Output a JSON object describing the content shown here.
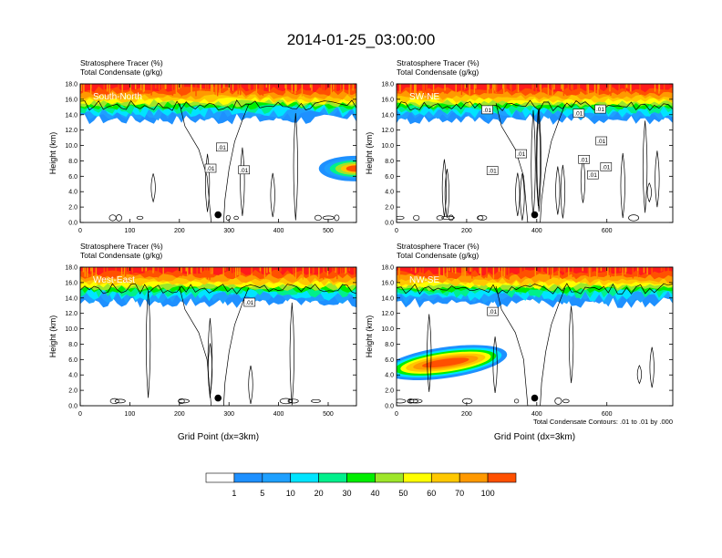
{
  "figure": {
    "title": "2014-01-25_03:00:00",
    "footnote": "Total Condensate Contours: .01 to .01 by .000",
    "xlabel": "Grid Point (dx=3km)",
    "ylabel": "Height (km)",
    "subtitle_line1": "Stratosphere Tracer   (%)",
    "subtitle_line2": "Total Condensate   (g/kg)"
  },
  "colorbar": {
    "labels": [
      "1",
      "5",
      "10",
      "20",
      "30",
      "40",
      "50",
      "60",
      "70",
      "100"
    ],
    "colors": [
      "#ffffff",
      "#1e90ff",
      "#1ea0ff",
      "#00e4ff",
      "#00f08c",
      "#00ee00",
      "#9ee62a",
      "#ffff00",
      "#ffc800",
      "#ff9900",
      "#ff5000",
      "#ff1a1a"
    ]
  },
  "chart_data": [
    {
      "type": "heatmap",
      "panel": "South-North",
      "label": "South-North",
      "xlim": [
        0,
        557
      ],
      "ylim": [
        0,
        18
      ],
      "xticks": [
        "0",
        "100",
        "200",
        "300",
        "400",
        "500"
      ],
      "yticks": [
        "0.0",
        "2.0",
        "4.0",
        "6.0",
        "8.0",
        "10.0",
        "12.0",
        "14.0",
        "16.0",
        "18.0"
      ],
      "contour_labels": [
        ".01",
        ".01",
        ".01"
      ],
      "point": {
        "x": 278,
        "y": 1.0
      },
      "tracer_top_km": 18,
      "tracer_base_km": 14
    },
    {
      "type": "heatmap",
      "panel": "SW-NE",
      "label": "SW-NE",
      "xlim": [
        0,
        788
      ],
      "ylim": [
        0,
        18
      ],
      "xticks": [
        "0",
        "200",
        "400",
        "600"
      ],
      "yticks": [
        "0.0",
        "2.0",
        "4.0",
        "6.0",
        "8.0",
        "10.0",
        "12.0",
        "14.0",
        "16.0",
        "18.0"
      ],
      "contour_labels": [
        ".01",
        ".01",
        ".01",
        ".01",
        ".01",
        ".01",
        ".01",
        ".01",
        ".01"
      ],
      "point": {
        "x": 394,
        "y": 1.0
      },
      "tracer_top_km": 18,
      "tracer_base_km": 14
    },
    {
      "type": "heatmap",
      "panel": "West-East",
      "label": "West-East",
      "xlim": [
        0,
        557
      ],
      "ylim": [
        0,
        18
      ],
      "xticks": [
        "0",
        "100",
        "200",
        "300",
        "400",
        "500"
      ],
      "yticks": [
        "0.0",
        "2.0",
        "4.0",
        "6.0",
        "8.0",
        "10.0",
        "12.0",
        "14.0",
        "16.0",
        "18.0"
      ],
      "contour_labels": [
        ".01"
      ],
      "point": {
        "x": 278,
        "y": 1.0
      },
      "tracer_top_km": 18,
      "tracer_base_km": 14
    },
    {
      "type": "heatmap",
      "panel": "NW-SE",
      "label": "NW-SE",
      "xlim": [
        0,
        788
      ],
      "ylim": [
        0,
        18
      ],
      "xticks": [
        "0",
        "200",
        "400",
        "600"
      ],
      "yticks": [
        "0.0",
        "2.0",
        "4.0",
        "6.0",
        "8.0",
        "10.0",
        "12.0",
        "14.0",
        "16.0",
        "18.0"
      ],
      "contour_labels": [
        ".01"
      ],
      "point": {
        "x": 394,
        "y": 1.0
      },
      "tracer_top_km": 18,
      "tracer_base_km": 14
    }
  ]
}
